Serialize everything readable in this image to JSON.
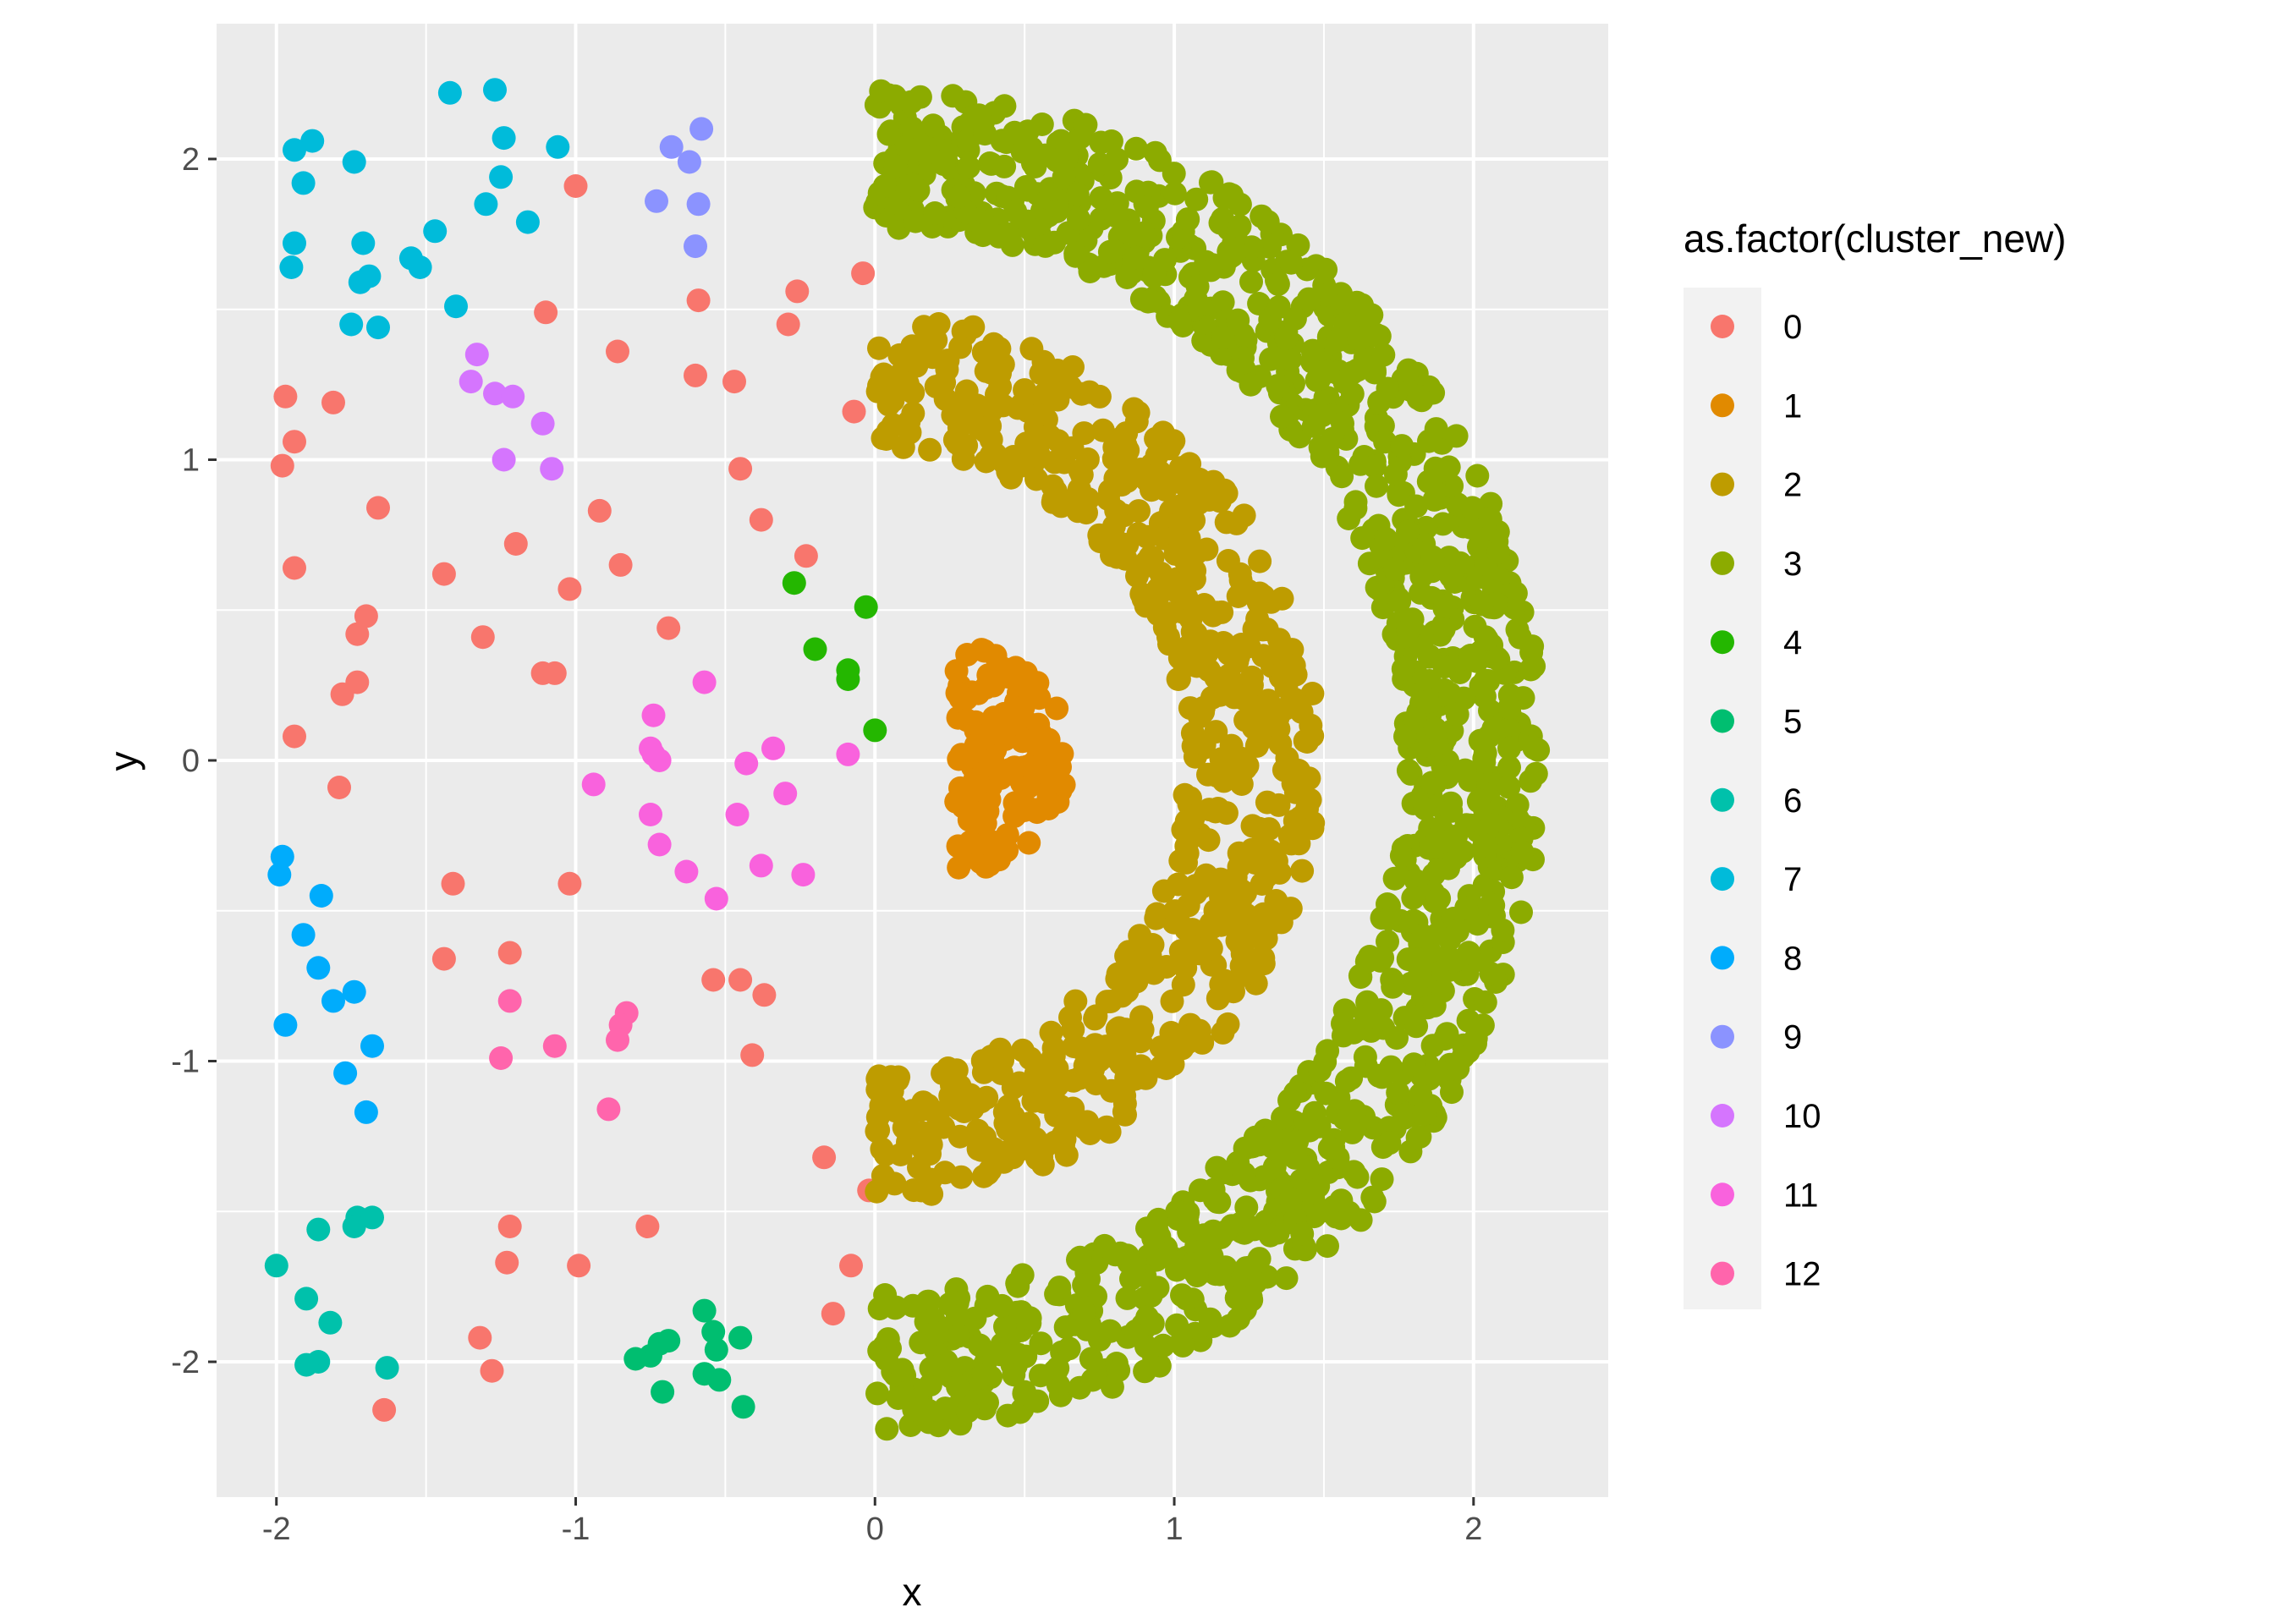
{
  "chart_data": {
    "type": "scatter",
    "title": "",
    "xlabel": "x",
    "ylabel": "y",
    "xlim": [
      -2.2,
      2.45
    ],
    "ylim": [
      -2.45,
      2.45
    ],
    "x_ticks": [
      -2,
      -1,
      0,
      1,
      2
    ],
    "x_tick_labels": [
      "-2",
      "-1",
      "0",
      "1",
      "2"
    ],
    "y_ticks": [
      -2,
      -1,
      0,
      1,
      2
    ],
    "y_tick_labels": [
      "-2",
      "-1",
      "0",
      "1",
      "2"
    ],
    "grid": true,
    "legend": {
      "title": "as.factor(cluster_new)",
      "placement": "right",
      "entries": [
        "0",
        "1",
        "2",
        "3",
        "4",
        "5",
        "6",
        "7",
        "8",
        "9",
        "10",
        "11",
        "12"
      ]
    },
    "colors": {
      "0": "#F8766D",
      "1": "#E18A00",
      "2": "#BE9C00",
      "3": "#8CAB00",
      "4": "#24B700",
      "5": "#00BE70",
      "6": "#00C1AB",
      "7": "#00BBDA",
      "8": "#00ACFC",
      "9": "#8B93FF",
      "10": "#D575FE",
      "11": "#F962DD",
      "12": "#FF65AC"
    },
    "panel_background": "#EBEBEB",
    "grid_color": "#FFFFFF",
    "series": [
      {
        "name": "0",
        "points": [
          [
            -1.0,
            1.91
          ],
          [
            -0.04,
            1.62
          ],
          [
            -0.26,
            1.56
          ],
          [
            -0.59,
            1.53
          ],
          [
            -0.29,
            1.45
          ],
          [
            -1.1,
            1.49
          ],
          [
            -0.86,
            1.36
          ],
          [
            -0.6,
            1.28
          ],
          [
            -0.47,
            1.26
          ],
          [
            -1.97,
            1.21
          ],
          [
            -1.81,
            1.19
          ],
          [
            -0.07,
            1.16
          ],
          [
            -1.94,
            1.06
          ],
          [
            -1.98,
            0.98
          ],
          [
            -0.45,
            0.97
          ],
          [
            -1.66,
            0.84
          ],
          [
            -0.92,
            0.83
          ],
          [
            -0.38,
            0.8
          ],
          [
            -1.2,
            0.72
          ],
          [
            -0.23,
            0.68
          ],
          [
            -1.94,
            0.64
          ],
          [
            -0.85,
            0.65
          ],
          [
            -1.44,
            0.62
          ],
          [
            -1.02,
            0.57
          ],
          [
            -1.7,
            0.48
          ],
          [
            -0.69,
            0.44
          ],
          [
            -1.73,
            0.42
          ],
          [
            -1.31,
            0.41
          ],
          [
            -1.11,
            0.29
          ],
          [
            -1.07,
            0.29
          ],
          [
            -1.73,
            0.26
          ],
          [
            -1.78,
            0.22
          ],
          [
            -1.94,
            0.08
          ],
          [
            -1.79,
            -0.09
          ],
          [
            -1.02,
            -0.41
          ],
          [
            -1.41,
            -0.41
          ],
          [
            -1.44,
            -0.66
          ],
          [
            -1.22,
            -0.64
          ],
          [
            -0.54,
            -0.73
          ],
          [
            -0.45,
            -0.73
          ],
          [
            -0.37,
            -0.78
          ],
          [
            -0.41,
            -0.98
          ],
          [
            -0.17,
            -1.32
          ],
          [
            -0.02,
            -1.43
          ],
          [
            -0.76,
            -1.55
          ],
          [
            -1.22,
            -1.55
          ],
          [
            -1.23,
            -1.67
          ],
          [
            -0.99,
            -1.68
          ],
          [
            -0.08,
            -1.68
          ],
          [
            -0.14,
            -1.84
          ],
          [
            -1.32,
            -1.92
          ],
          [
            -1.28,
            -2.03
          ],
          [
            -1.64,
            -2.16
          ]
        ]
      },
      {
        "name": "1",
        "ring": {
          "r": 0.38,
          "center": [
            0.27,
            0.0
          ],
          "start_deg": -90,
          "end_deg": 90,
          "n": 150,
          "spread": 0.15,
          "seed": 11,
          "filled": true
        }
      },
      {
        "name": "2",
        "ring": {
          "r": 1.26,
          "center": [
            0.0,
            0.0
          ],
          "start_deg": -90,
          "end_deg": 90,
          "n": 700,
          "spread": 0.22,
          "seed": 22,
          "filled": false
        }
      },
      {
        "name": "3",
        "ring": {
          "r": 2.0,
          "center": [
            0.0,
            0.0
          ],
          "start_deg": -90,
          "end_deg": 90,
          "n": 1200,
          "spread": 0.23,
          "seed": 33,
          "filled": false
        }
      },
      {
        "name": "4",
        "points": [
          [
            -0.27,
            0.59
          ],
          [
            -0.03,
            0.51
          ],
          [
            -0.2,
            0.37
          ],
          [
            -0.09,
            0.3
          ],
          [
            -0.09,
            0.27
          ],
          [
            0.0,
            0.1
          ]
        ]
      },
      {
        "name": "5",
        "points": [
          [
            -0.57,
            -1.83
          ],
          [
            -0.69,
            -1.93
          ],
          [
            -0.72,
            -1.94
          ],
          [
            -0.75,
            -1.98
          ],
          [
            -0.54,
            -1.9
          ],
          [
            -0.45,
            -1.92
          ],
          [
            -0.53,
            -1.96
          ],
          [
            -0.57,
            -2.04
          ],
          [
            -0.52,
            -2.06
          ],
          [
            -0.8,
            -1.99
          ],
          [
            -0.71,
            -2.1
          ],
          [
            -0.44,
            -2.15
          ]
        ]
      },
      {
        "name": "6",
        "points": [
          [
            -1.73,
            -1.52
          ],
          [
            -1.68,
            -1.52
          ],
          [
            -1.74,
            -1.55
          ],
          [
            -1.86,
            -1.56
          ],
          [
            -2.0,
            -1.68
          ],
          [
            -1.9,
            -1.79
          ],
          [
            -1.82,
            -1.87
          ],
          [
            -1.86,
            -2.0
          ],
          [
            -1.9,
            -2.01
          ],
          [
            -1.63,
            -2.02
          ]
        ]
      },
      {
        "name": "7",
        "points": [
          [
            -1.42,
            2.22
          ],
          [
            -1.27,
            2.23
          ],
          [
            -1.24,
            2.07
          ],
          [
            -1.88,
            2.06
          ],
          [
            -1.94,
            2.03
          ],
          [
            -1.06,
            2.04
          ],
          [
            -1.74,
            1.99
          ],
          [
            -1.25,
            1.94
          ],
          [
            -1.91,
            1.92
          ],
          [
            -1.3,
            1.85
          ],
          [
            -1.16,
            1.79
          ],
          [
            -1.47,
            1.76
          ],
          [
            -1.94,
            1.72
          ],
          [
            -1.71,
            1.72
          ],
          [
            -1.55,
            1.67
          ],
          [
            -1.95,
            1.64
          ],
          [
            -1.52,
            1.64
          ],
          [
            -1.69,
            1.61
          ],
          [
            -1.72,
            1.59
          ],
          [
            -1.4,
            1.51
          ],
          [
            -1.75,
            1.45
          ],
          [
            -1.66,
            1.44
          ]
        ]
      },
      {
        "name": "8",
        "points": [
          [
            -1.98,
            -0.32
          ],
          [
            -1.99,
            -0.38
          ],
          [
            -1.85,
            -0.45
          ],
          [
            -1.91,
            -0.58
          ],
          [
            -1.86,
            -0.69
          ],
          [
            -1.74,
            -0.77
          ],
          [
            -1.81,
            -0.8
          ],
          [
            -1.97,
            -0.88
          ],
          [
            -1.68,
            -0.95
          ],
          [
            -1.77,
            -1.04
          ],
          [
            -1.7,
            -1.17
          ]
        ]
      },
      {
        "name": "9",
        "points": [
          [
            -0.58,
            2.1
          ],
          [
            -0.68,
            2.04
          ],
          [
            -0.62,
            1.99
          ],
          [
            -0.73,
            1.86
          ],
          [
            -0.59,
            1.85
          ],
          [
            -0.6,
            1.71
          ]
        ]
      },
      {
        "name": "10",
        "points": [
          [
            -1.33,
            1.35
          ],
          [
            -1.35,
            1.26
          ],
          [
            -1.27,
            1.22
          ],
          [
            -1.21,
            1.21
          ],
          [
            -1.11,
            1.12
          ],
          [
            -1.24,
            1.0
          ],
          [
            -1.08,
            0.97
          ]
        ]
      },
      {
        "name": "11",
        "points": [
          [
            -0.57,
            0.26
          ],
          [
            -0.74,
            0.15
          ],
          [
            -0.75,
            0.04
          ],
          [
            -0.74,
            0.02
          ],
          [
            -0.72,
            0.0
          ],
          [
            -0.34,
            0.04
          ],
          [
            -0.09,
            0.02
          ],
          [
            -0.43,
            -0.01
          ],
          [
            -0.94,
            -0.08
          ],
          [
            -0.3,
            -0.11
          ],
          [
            -0.75,
            -0.18
          ],
          [
            -0.46,
            -0.18
          ],
          [
            -0.72,
            -0.28
          ],
          [
            -0.63,
            -0.37
          ],
          [
            -0.38,
            -0.35
          ],
          [
            -0.24,
            -0.38
          ],
          [
            -0.53,
            -0.46
          ]
        ]
      },
      {
        "name": "12",
        "points": [
          [
            -0.83,
            -0.84
          ],
          [
            -0.85,
            -0.88
          ],
          [
            -0.86,
            -0.93
          ],
          [
            -1.22,
            -0.8
          ],
          [
            -1.07,
            -0.95
          ],
          [
            -1.25,
            -0.99
          ],
          [
            -0.89,
            -1.16
          ]
        ]
      }
    ]
  }
}
